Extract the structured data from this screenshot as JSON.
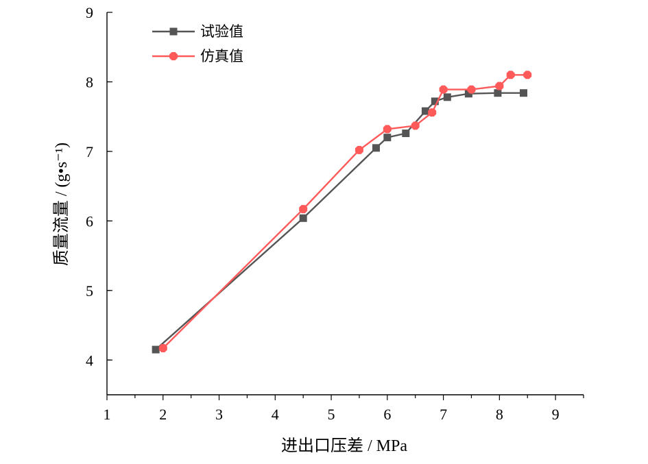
{
  "chart_data": {
    "type": "line",
    "xlabel": "进出口压差 / MPa",
    "ylabel": "质量流量 / (g•s⁻¹)",
    "xlim": [
      1,
      9.5
    ],
    "ylim": [
      3.5,
      9
    ],
    "xticks": [
      "1",
      "2",
      "3",
      "4",
      "5",
      "6",
      "7",
      "8",
      "9"
    ],
    "yticks": [
      "4",
      "5",
      "6",
      "7",
      "8",
      "9"
    ],
    "legend": "top-left",
    "grid": false,
    "series": [
      {
        "name": "试验值",
        "color": "#555555",
        "marker": "square",
        "x": [
          1.87,
          4.5,
          5.8,
          6.0,
          6.33,
          6.68,
          6.85,
          7.07,
          7.45,
          7.97,
          8.43
        ],
        "y": [
          4.15,
          6.04,
          7.05,
          7.2,
          7.26,
          7.58,
          7.72,
          7.78,
          7.83,
          7.84,
          7.84
        ]
      },
      {
        "name": "仿真值",
        "color": "#ff5a5a",
        "marker": "octagon",
        "x": [
          2.0,
          4.5,
          5.5,
          6.0,
          6.5,
          6.8,
          7.0,
          7.5,
          8.0,
          8.2,
          8.5
        ],
        "y": [
          4.17,
          6.17,
          7.02,
          7.32,
          7.37,
          7.56,
          7.89,
          7.89,
          7.94,
          8.1,
          8.1
        ]
      }
    ]
  }
}
